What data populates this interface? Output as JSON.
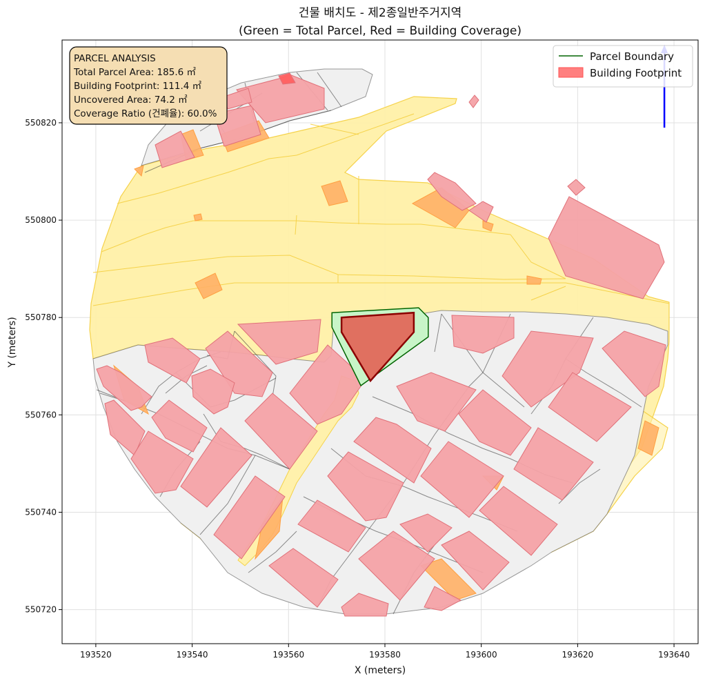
{
  "figure": {
    "title_line1": "건물 배치도 - 제2종일반주거지역",
    "title_line2": "(Green = Total Parcel, Red = Building Coverage)"
  },
  "chart_data": {
    "type": "map-plot",
    "xlabel": "X (meters)",
    "ylabel": "Y (meters)",
    "xlim": [
      193513,
      193645
    ],
    "ylim": [
      550713,
      550837
    ],
    "xticks": [
      193520,
      193540,
      193560,
      193580,
      193600,
      193620,
      193640
    ],
    "yticks": [
      550720,
      550740,
      550760,
      550780,
      550800,
      550820
    ],
    "grid": true,
    "legend": {
      "position": "top-right",
      "entries": [
        {
          "label": "Parcel Boundary",
          "kind": "line",
          "color": "#006400"
        },
        {
          "label": "Building Footprint",
          "kind": "patch",
          "color": "#ff7f7f"
        }
      ]
    },
    "annotation": {
      "position": "top-left",
      "lines": [
        "PARCEL ANALYSIS",
        "Total Parcel Area: 185.6 ㎡",
        "Building Footprint: 111.4 ㎡",
        "Uncovered Area: 74.2 ㎡",
        "Coverage Ratio (건폐율): 60.0%"
      ]
    },
    "colors": {
      "road": "#fff0a8",
      "road_edge": "#f5d24a",
      "parcel_fill": "#efefef",
      "parcel_edge": "#555555",
      "building": "#f4a2a6",
      "building_edge": "#e0707a",
      "orange": "#ffb066",
      "target_parcel_fill": "#c8f5c8",
      "target_parcel_edge": "#006400",
      "target_building_fill": "#e07060",
      "target_building_edge": "#8b0000",
      "north_arrow": "#0000ff"
    },
    "target_parcel": [
      [
        193569,
        550781
      ],
      [
        193587,
        550782
      ],
      [
        193589,
        550780
      ],
      [
        193589,
        550776
      ],
      [
        193575,
        550766
      ],
      [
        193569,
        550778
      ]
    ],
    "target_building": [
      [
        193571,
        550780
      ],
      [
        193586,
        550781
      ],
      [
        193586,
        550777
      ],
      [
        193577,
        550767
      ],
      [
        193571,
        550777
      ]
    ],
    "north_arrow": {
      "x": 193638,
      "y_from": 550819,
      "y_to": 550836
    }
  }
}
